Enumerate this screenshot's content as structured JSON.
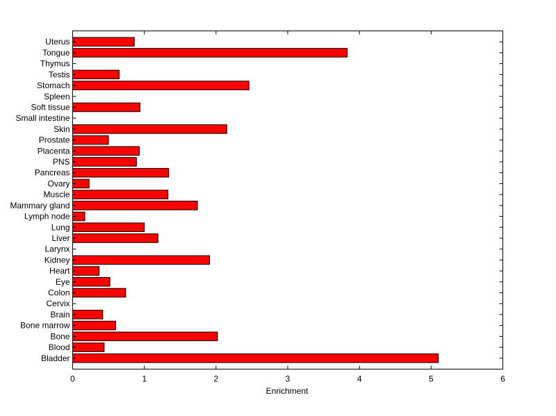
{
  "chart_data": {
    "type": "bar",
    "orientation": "horizontal",
    "title": "",
    "xlabel": "Enrichment",
    "ylabel": "",
    "xlim": [
      0,
      6
    ],
    "xticks": [
      "0",
      "1",
      "2",
      "3",
      "4",
      "5",
      "6"
    ],
    "bar_color": "#ff0000",
    "bar_edge_color": "#000000",
    "grid": false,
    "categories": [
      "Bladder",
      "Blood",
      "Bone",
      "Bone marrow",
      "Brain",
      "Cervix",
      "Colon",
      "Eye",
      "Heart",
      "Kidney",
      "Larynx",
      "Liver",
      "Lung",
      "Lymph node",
      "Mammary gland",
      "Muscle",
      "Ovary",
      "Pancreas",
      "PNS",
      "Placenta",
      "Prostate",
      "Skin",
      "Small intestine",
      "Soft tissue",
      "Spleen",
      "Stomach",
      "Testis",
      "Thymus",
      "Tongue",
      "Uterus"
    ],
    "values": [
      5.1,
      0.44,
      2.02,
      0.6,
      0.42,
      0,
      0.74,
      0.52,
      0.37,
      1.91,
      0,
      1.19,
      1.0,
      0.17,
      1.74,
      1.33,
      0.23,
      1.34,
      0.89,
      0.93,
      0.5,
      2.15,
      0,
      0.94,
      0,
      2.46,
      0.65,
      0,
      3.83,
      0.86
    ]
  }
}
